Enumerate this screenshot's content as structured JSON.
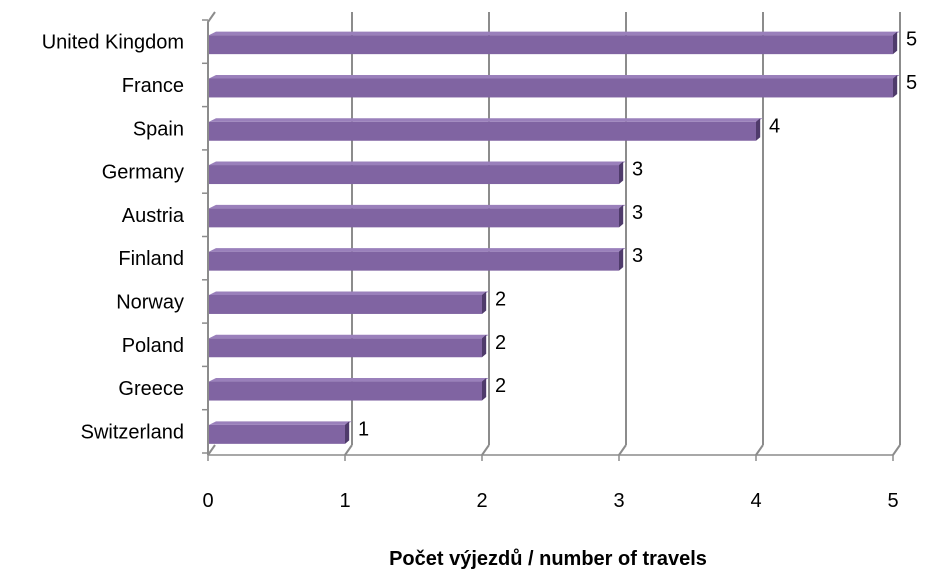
{
  "chart_data": {
    "type": "bar",
    "orientation": "horizontal",
    "categories": [
      "United Kingdom",
      "France",
      "Spain",
      "Germany",
      "Austria",
      "Finland",
      "Norway",
      "Poland",
      "Greece",
      "Switzerland"
    ],
    "values": [
      5,
      5,
      4,
      3,
      3,
      3,
      2,
      2,
      2,
      1
    ],
    "title": "",
    "xlabel": "Počet výjezdů / number of travels",
    "ylabel": "",
    "xlim": [
      0,
      5
    ],
    "x_ticks": [
      "0",
      "1",
      "2",
      "3",
      "4",
      "5"
    ],
    "data_labels": [
      "5",
      "5",
      "4",
      "3",
      "3",
      "3",
      "2",
      "2",
      "2",
      "1"
    ],
    "grid": "vertical",
    "legend": "none",
    "style": "3d",
    "colors": {
      "bar_front": "#8064a2",
      "bar_top": "#9a80bb",
      "bar_side": "#4f3b6b",
      "grid": "#8c8c8c"
    }
  }
}
